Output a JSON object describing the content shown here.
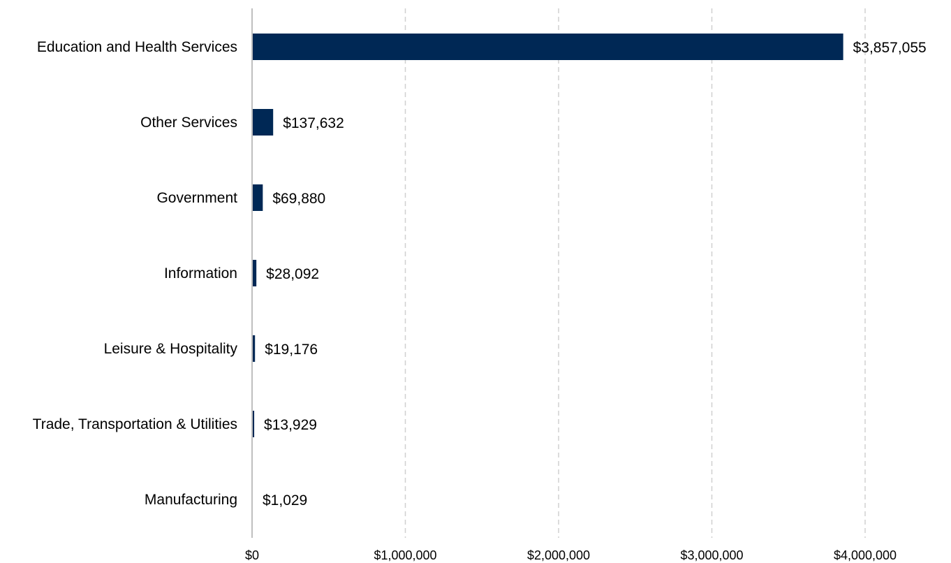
{
  "chart_data": {
    "type": "bar",
    "orientation": "horizontal",
    "title": "",
    "xlabel": "",
    "ylabel": "",
    "categories": [
      "Education and Health Services",
      "Other Services",
      "Government",
      "Information",
      "Leisure & Hospitality",
      "Trade, Transportation & Utilities",
      "Manufacturing"
    ],
    "values": [
      3857055,
      137632,
      69880,
      28092,
      19176,
      13929,
      1029
    ],
    "data_labels": [
      "$3,857,055",
      "$137,632",
      "$69,880",
      "$28,092",
      "$19,176",
      "$13,929",
      "$1,029"
    ],
    "xlim": [
      0,
      4000000
    ],
    "x_ticks": [
      0,
      1000000,
      2000000,
      3000000,
      4000000
    ],
    "x_tick_labels": [
      "$0",
      "$1,000,000",
      "$2,000,000",
      "$3,000,000",
      "$4,000,000"
    ],
    "grid": "vertical dashed",
    "legend": "none",
    "bar_color": "#002855",
    "grid_color": "#d0d0d0",
    "axis_color": "#bfbfbf"
  }
}
